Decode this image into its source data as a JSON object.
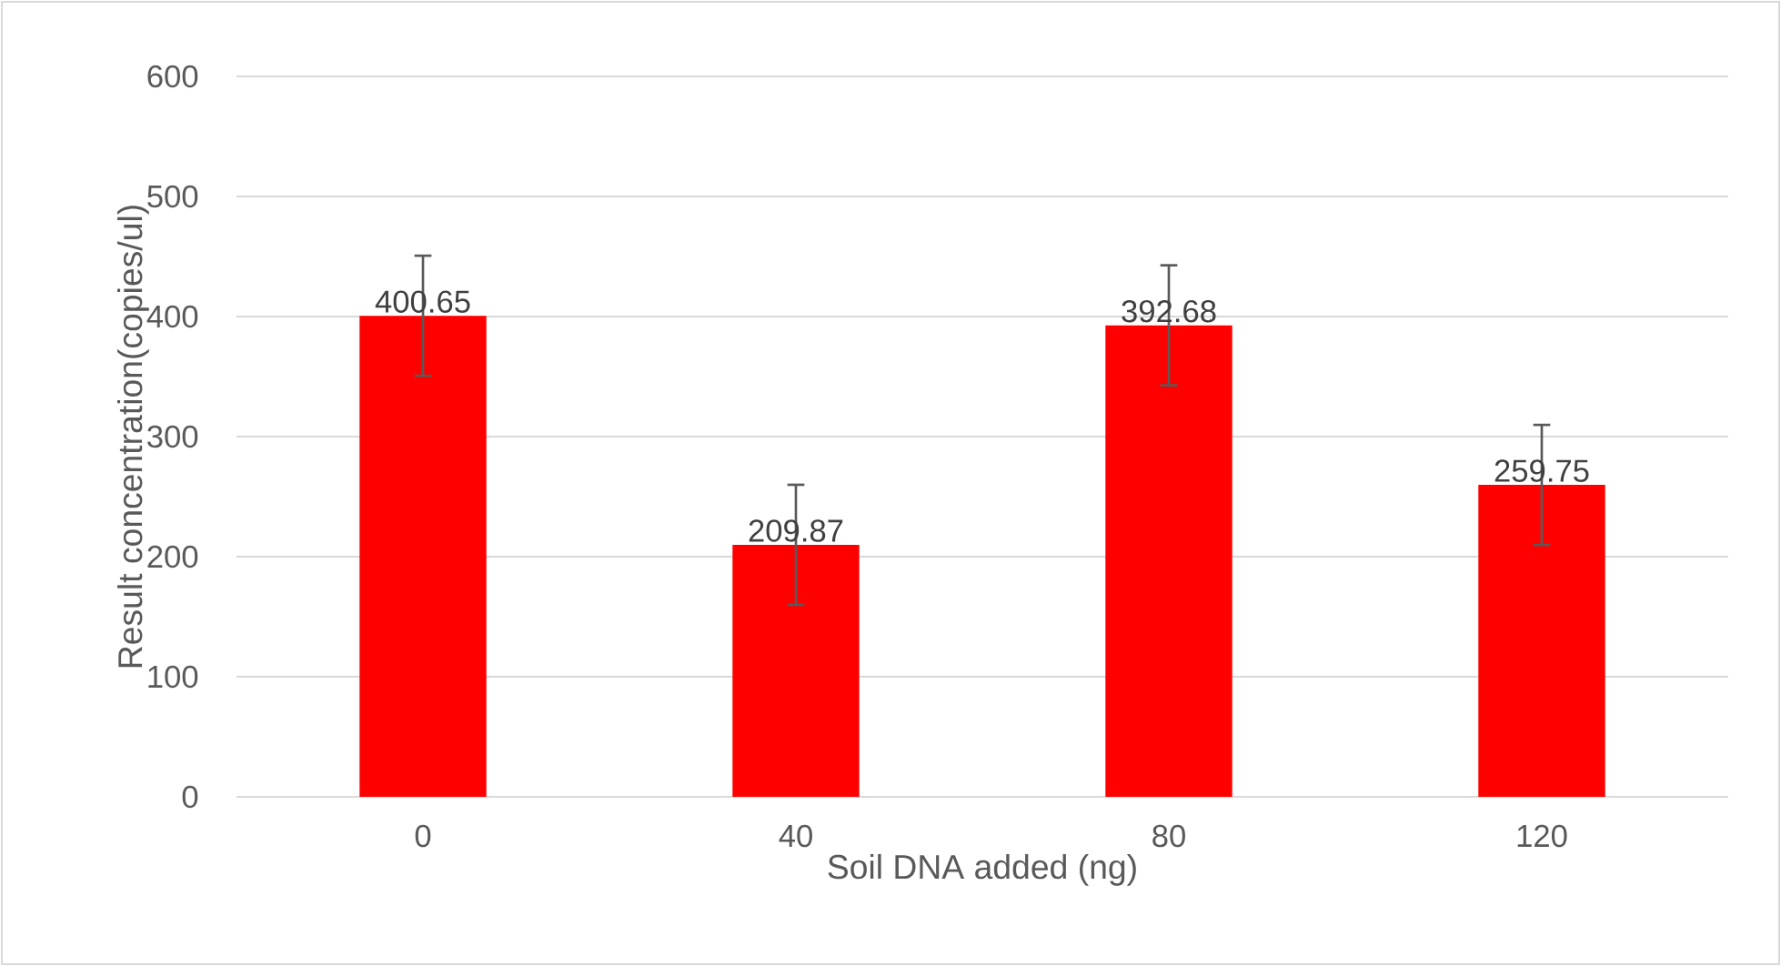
{
  "chart_data": {
    "type": "bar",
    "xlabel": "Soil DNA added (ng)",
    "ylabel": "Result concentration(copies/ul)",
    "categories": [
      "0",
      "40",
      "80",
      "120"
    ],
    "values": [
      400.65,
      209.87,
      392.68,
      259.75
    ],
    "errors": [
      50,
      50,
      50,
      50
    ],
    "color": "#ff0000",
    "data_labels": true,
    "ylim": [
      0,
      600
    ],
    "yticks": [
      0,
      100,
      200,
      300,
      400,
      500,
      600
    ],
    "grid": "y"
  }
}
